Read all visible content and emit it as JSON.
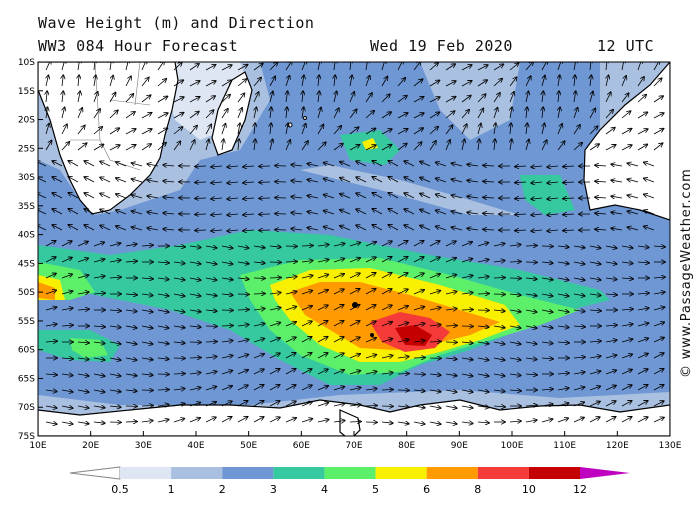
{
  "header": {
    "title_line1": "Wave Height (m) and Direction",
    "model_line": "WW3 084 Hour Forecast",
    "date": "Wed 19 Feb 2020",
    "time": "12 UTC"
  },
  "credit": "© www.PassageWeather.com",
  "axes": {
    "lat_labels": [
      "10S",
      "15S",
      "20S",
      "25S",
      "30S",
      "35S",
      "40S",
      "45S",
      "50S",
      "55S",
      "60S",
      "65S",
      "70S",
      "75S"
    ],
    "lon_labels": [
      "10E",
      "20E",
      "30E",
      "40E",
      "50E",
      "60E",
      "70E",
      "80E",
      "90E",
      "100E",
      "110E",
      "120E",
      "130E"
    ]
  },
  "colorbar": {
    "labels": [
      "0.5",
      "1",
      "2",
      "3",
      "4",
      "5",
      "6",
      "8",
      "10",
      "12"
    ],
    "colors": [
      "#ffffff",
      "#dde6f2",
      "#a9c0e0",
      "#6e97d4",
      "#36c9a0",
      "#5cf06a",
      "#f8f000",
      "#ff9a00",
      "#f53a3a",
      "#c40000",
      "#c000c0"
    ]
  },
  "palette": {
    "land": "#ffffff",
    "ocean_base": "#6e97d4"
  }
}
